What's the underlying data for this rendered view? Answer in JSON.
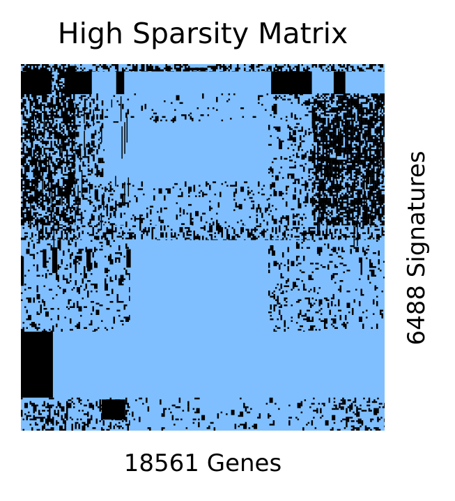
{
  "chart_data": {
    "type": "heatmap",
    "title": "High Sparsity Matrix",
    "xlabel": "18561 Genes",
    "ylabel": "6488 Signatures",
    "n_columns": 18561,
    "n_rows": 6488,
    "colors": {
      "zero": "#7fbfff",
      "nonzero": "#000000"
    },
    "ticks": false,
    "grid": false,
    "legend": "none"
  }
}
